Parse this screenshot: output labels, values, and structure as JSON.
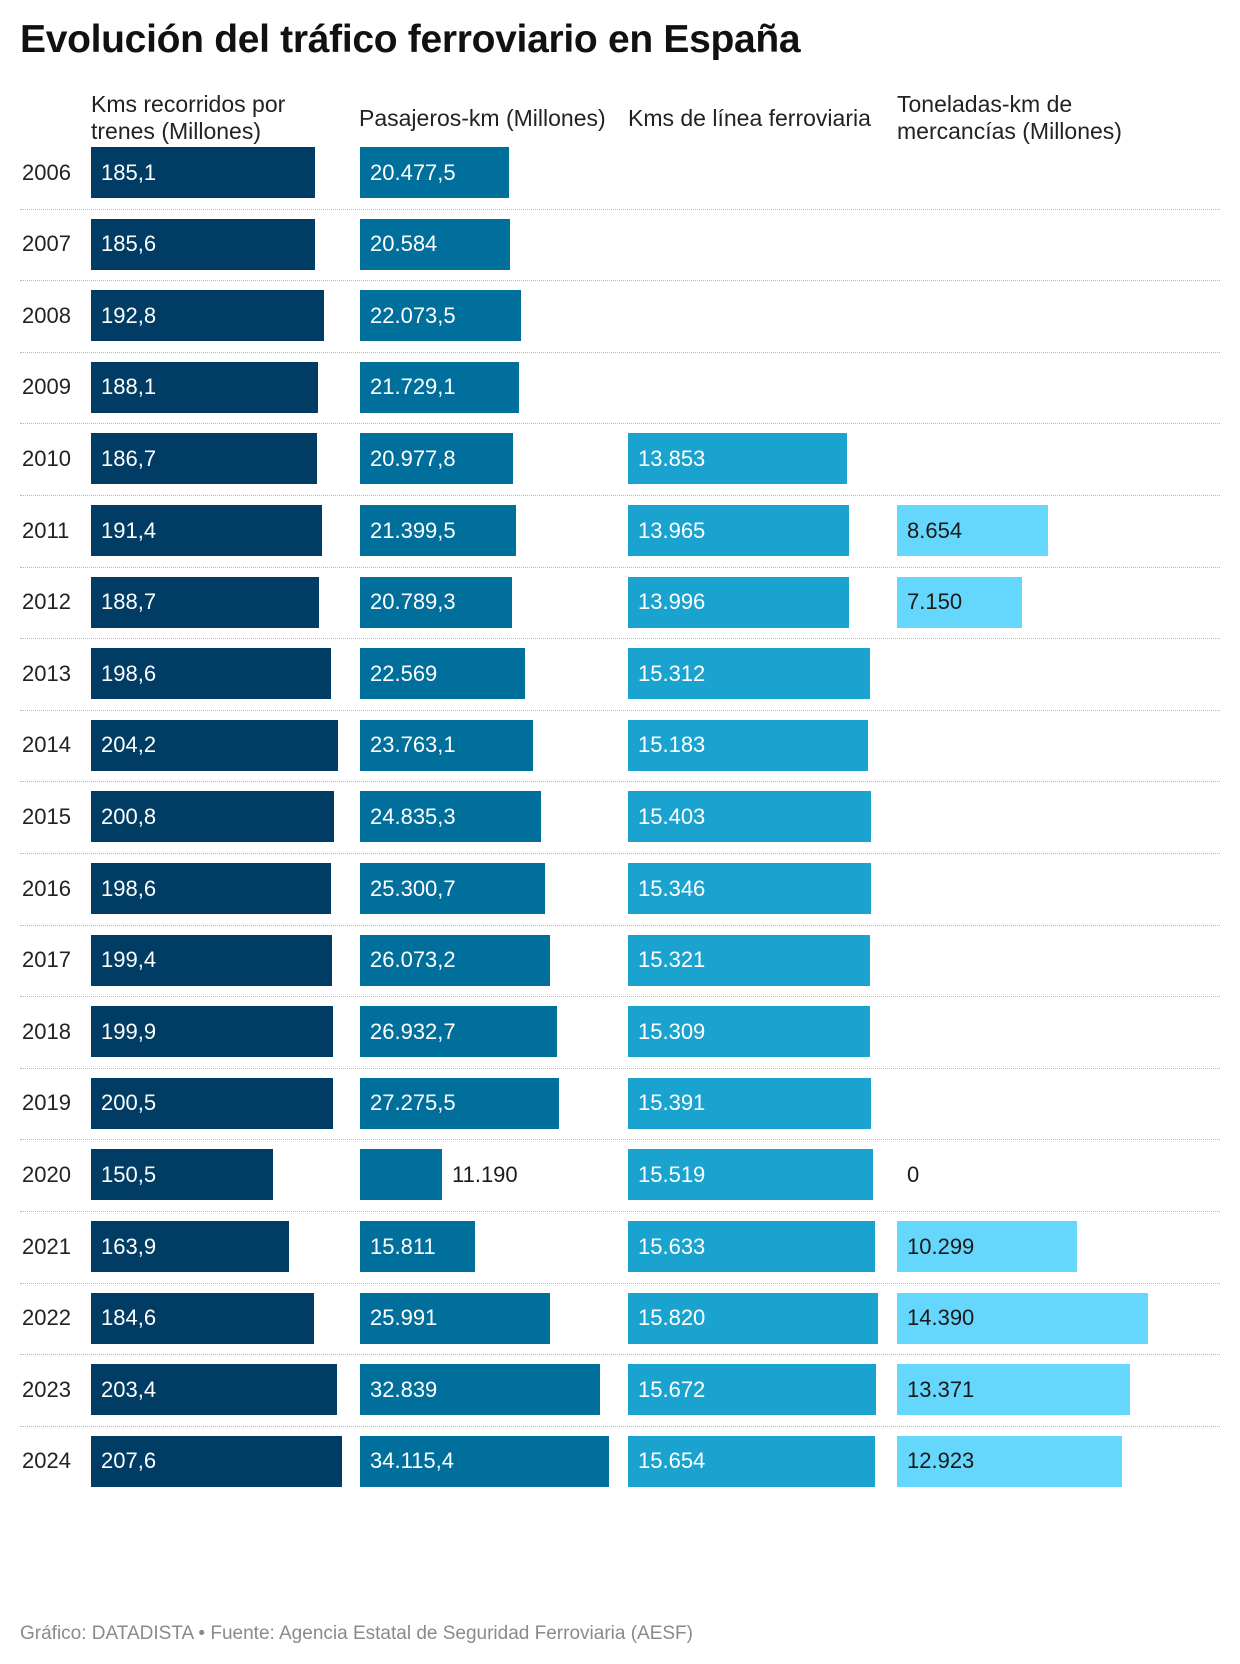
{
  "title": "Evolución del tráfico ferroviario en España",
  "footer": "Gráfico: DATADISTA • Fuente: Agencia Estatal de Seguridad Ferroviaria (AESF)",
  "chart_data": {
    "type": "bar",
    "orientation": "horizontal-small-multiples",
    "categories": [
      "2006",
      "2007",
      "2008",
      "2009",
      "2010",
      "2011",
      "2012",
      "2013",
      "2014",
      "2015",
      "2016",
      "2017",
      "2018",
      "2019",
      "2020",
      "2021",
      "2022",
      "2023",
      "2024"
    ],
    "series": [
      {
        "name": "Kms recorridos por trenes (Millones)",
        "color": "#003c64",
        "max": 207.6,
        "values": [
          185.1,
          185.6,
          192.8,
          188.1,
          186.7,
          191.4,
          188.7,
          198.6,
          204.2,
          200.8,
          198.6,
          199.4,
          199.9,
          200.5,
          150.5,
          163.9,
          184.6,
          203.4,
          207.6
        ],
        "labels": [
          "185,1",
          "185,6",
          "192,8",
          "188,1",
          "186,7",
          "191,4",
          "188,7",
          "198,6",
          "204,2",
          "200,8",
          "198,6",
          "199,4",
          "199,9",
          "200,5",
          "150,5",
          "163,9",
          "184,6",
          "203,4",
          "207,6"
        ]
      },
      {
        "name": "Pasajeros-km (Millones)",
        "color": "#006f9b",
        "max": 34115.4,
        "values": [
          20477.5,
          20584,
          22073.5,
          21729.1,
          20977.8,
          21399.5,
          20789.3,
          22569,
          23763.1,
          24835.3,
          25300.7,
          26073.2,
          26932.7,
          27275.5,
          11190,
          15811,
          25991,
          32839,
          34115.4
        ],
        "labels": [
          "20.477,5",
          "20.584",
          "22.073,5",
          "21.729,1",
          "20.977,8",
          "21.399,5",
          "20.789,3",
          "22.569",
          "23.763,1",
          "24.835,3",
          "25.300,7",
          "26.073,2",
          "26.932,7",
          "27.275,5",
          "11.190",
          "15.811",
          "25.991",
          "32.839",
          "34.115,4"
        ]
      },
      {
        "name": "Kms de línea ferroviaria",
        "color": "#1ba3d0",
        "max": 15820,
        "values": [
          null,
          null,
          null,
          null,
          13853,
          13965,
          13996,
          15312,
          15183,
          15403,
          15346,
          15321,
          15309,
          15391,
          15519,
          15633,
          15820,
          15672,
          15654
        ],
        "labels": [
          null,
          null,
          null,
          null,
          "13.853",
          "13.965",
          "13.996",
          "15.312",
          "15.183",
          "15.403",
          "15.346",
          "15.321",
          "15.309",
          "15.391",
          "15.519",
          "15.633",
          "15.820",
          "15.672",
          "15.654"
        ]
      },
      {
        "name": "Toneladas-km de mercancías (Millones)",
        "color": "#66d7fc",
        "max": 14390,
        "values": [
          null,
          null,
          null,
          null,
          null,
          8654,
          7150,
          null,
          null,
          null,
          null,
          null,
          null,
          null,
          0,
          10299,
          14390,
          13371,
          12923
        ],
        "labels": [
          null,
          null,
          null,
          null,
          null,
          "8.654",
          "7.150",
          null,
          null,
          null,
          null,
          null,
          null,
          null,
          "0",
          "10.299",
          "14.390",
          "13.371",
          "12.923"
        ]
      }
    ]
  }
}
